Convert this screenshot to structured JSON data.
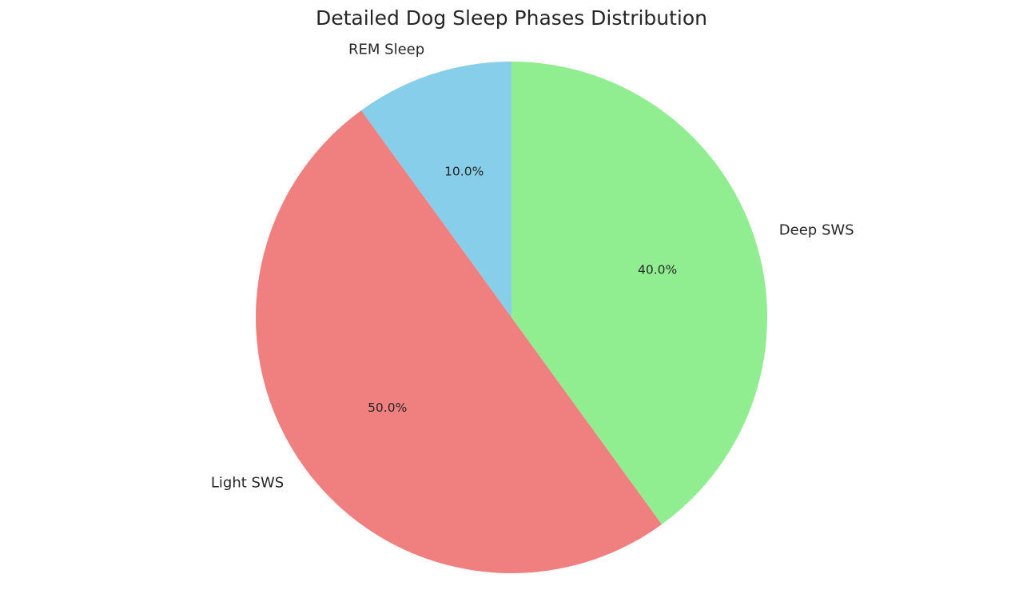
{
  "chart_data": {
    "type": "pie",
    "title": "Detailed Dog Sleep Phases Distribution",
    "start_angle": 90,
    "counterclockwise": true,
    "label_distance": 1.1,
    "pct_distance": 0.6,
    "text_color": "#262626",
    "background_color": "#ffffff",
    "legend": "none",
    "slices": [
      {
        "label": "REM Sleep",
        "value": 10.0,
        "pct_label": "10.0%",
        "color": "#87CEEB"
      },
      {
        "label": "Light SWS",
        "value": 50.0,
        "pct_label": "50.0%",
        "color": "#F08080"
      },
      {
        "label": "Deep SWS",
        "value": 40.0,
        "pct_label": "40.0%",
        "color": "#90EE90"
      }
    ]
  }
}
